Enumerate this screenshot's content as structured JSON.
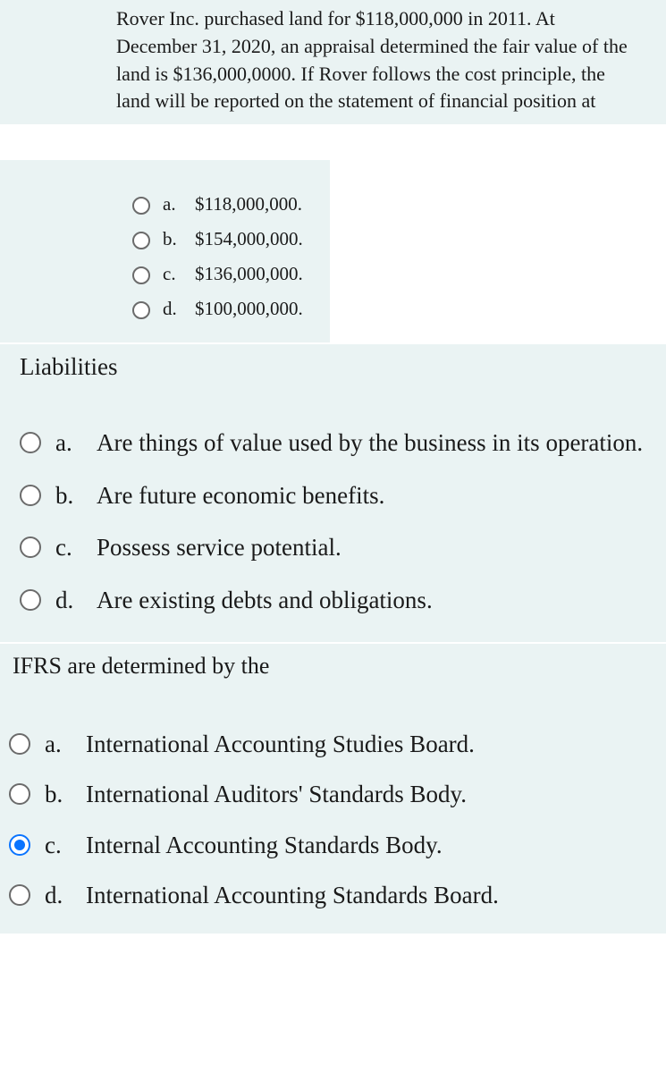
{
  "colors": {
    "panel_bg": "#eaf3f3",
    "text": "#1a1a1a",
    "radio_border": "#6b6b6b",
    "radio_selected": "#0a74ff"
  },
  "q1": {
    "stem": "Rover Inc. purchased land for $118,000,000 in 2011. At December 31, 2020, an appraisal determined the fair value of the land is $136,000,0000.  If Rover follows the cost principle, the land will be reported on the statement of financial position at",
    "options": [
      {
        "letter": "a.",
        "text": "$118,000,000.",
        "selected": false
      },
      {
        "letter": "b.",
        "text": "$154,000,000.",
        "selected": false
      },
      {
        "letter": "c.",
        "text": "$136,000,000.",
        "selected": false
      },
      {
        "letter": "d.",
        "text": "$100,000,000.",
        "selected": false
      }
    ]
  },
  "q2": {
    "stem": "Liabilities",
    "options": [
      {
        "letter": "a.",
        "text": "Are things of value used by the business in its operation.",
        "selected": false
      },
      {
        "letter": "b.",
        "text": "Are future economic benefits.",
        "selected": false
      },
      {
        "letter": "c.",
        "text": "Possess service potential.",
        "selected": false
      },
      {
        "letter": "d.",
        "text": "Are existing debts and obligations.",
        "selected": false
      }
    ]
  },
  "q3": {
    "stem": "IFRS are determined by the",
    "options": [
      {
        "letter": "a.",
        "text": "International Accounting Studies Board.",
        "selected": false
      },
      {
        "letter": "b.",
        "text": "International Auditors' Standards Body.",
        "selected": false
      },
      {
        "letter": "c.",
        "text": "Internal Accounting Standards Body.",
        "selected": true
      },
      {
        "letter": "d.",
        "text": "International Accounting Standards Board.",
        "selected": false
      }
    ]
  }
}
